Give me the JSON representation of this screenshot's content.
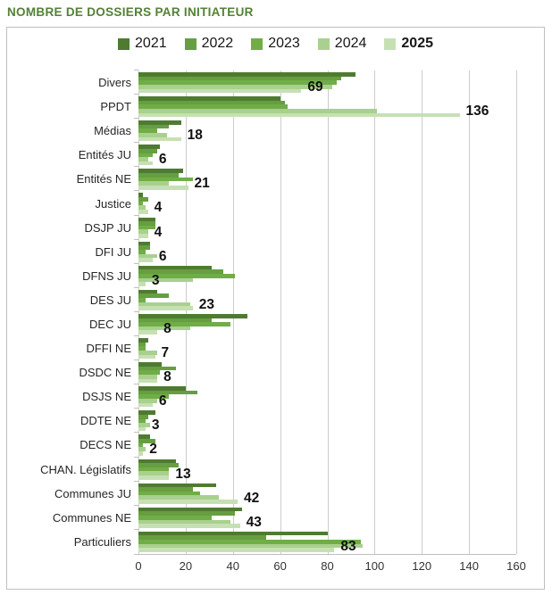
{
  "title": "NOMBRE DE DOSSIERS PAR INITIATEUR",
  "colors": {
    "title_green": "#538135",
    "border_gray": "#bfbfbf",
    "gridline_gray": "#cccccc",
    "label_dark": "#262626"
  },
  "chart_data": {
    "type": "bar",
    "orientation": "horizontal",
    "title": "NOMBRE DE DOSSIERS PAR INITIATEUR",
    "legend_position": "top",
    "grid": "vertical",
    "xlim": [
      0,
      160
    ],
    "x_ticks": [
      0,
      20,
      40,
      60,
      80,
      100,
      120,
      140,
      160
    ],
    "categories": [
      "Divers",
      "PPDT",
      "Médias",
      "Entités JU",
      "Entités NE",
      "Justice",
      "DSJP JU",
      "DFI JU",
      "DFNS JU",
      "DES JU",
      "DEC JU",
      "DFFI NE",
      "DSDC NE",
      "DSJS NE",
      "DDTE NE",
      "DECS NE",
      "CHAN. Législatifs",
      "Communes JU",
      "Communes NE",
      "Particuliers"
    ],
    "series": [
      {
        "name": "2021",
        "color": "#4e7b30",
        "values": [
          92,
          60,
          18,
          9,
          19,
          2,
          7,
          5,
          31,
          8,
          46,
          4,
          10,
          20,
          7,
          5,
          16,
          33,
          44,
          80
        ]
      },
      {
        "name": "2022",
        "color": "#669e41",
        "values": [
          86,
          62,
          13,
          8,
          17,
          4,
          7,
          5,
          36,
          13,
          31,
          3,
          16,
          25,
          4,
          7,
          17,
          23,
          41,
          54
        ]
      },
      {
        "name": "2023",
        "color": "#70ad47",
        "values": [
          84,
          63,
          8,
          6,
          23,
          2,
          7,
          3,
          41,
          3,
          39,
          3,
          9,
          13,
          3,
          2,
          13,
          26,
          31,
          94
        ]
      },
      {
        "name": "2024",
        "color": "#a9d08e",
        "values": [
          82,
          101,
          12,
          4,
          13,
          3,
          4,
          8,
          23,
          22,
          22,
          8,
          8,
          8,
          5,
          3,
          13,
          34,
          39,
          95
        ]
      },
      {
        "name": "2025",
        "color": "#c6e0b4",
        "values": [
          69,
          136,
          18,
          6,
          21,
          4,
          4,
          6,
          3,
          23,
          8,
          7,
          8,
          6,
          3,
          2,
          13,
          42,
          43,
          83
        ]
      }
    ],
    "data_labels": {
      "series": "2025",
      "values": [
        69,
        136,
        18,
        6,
        21,
        4,
        4,
        6,
        3,
        23,
        8,
        7,
        8,
        6,
        3,
        2,
        13,
        42,
        43,
        83
      ]
    }
  }
}
